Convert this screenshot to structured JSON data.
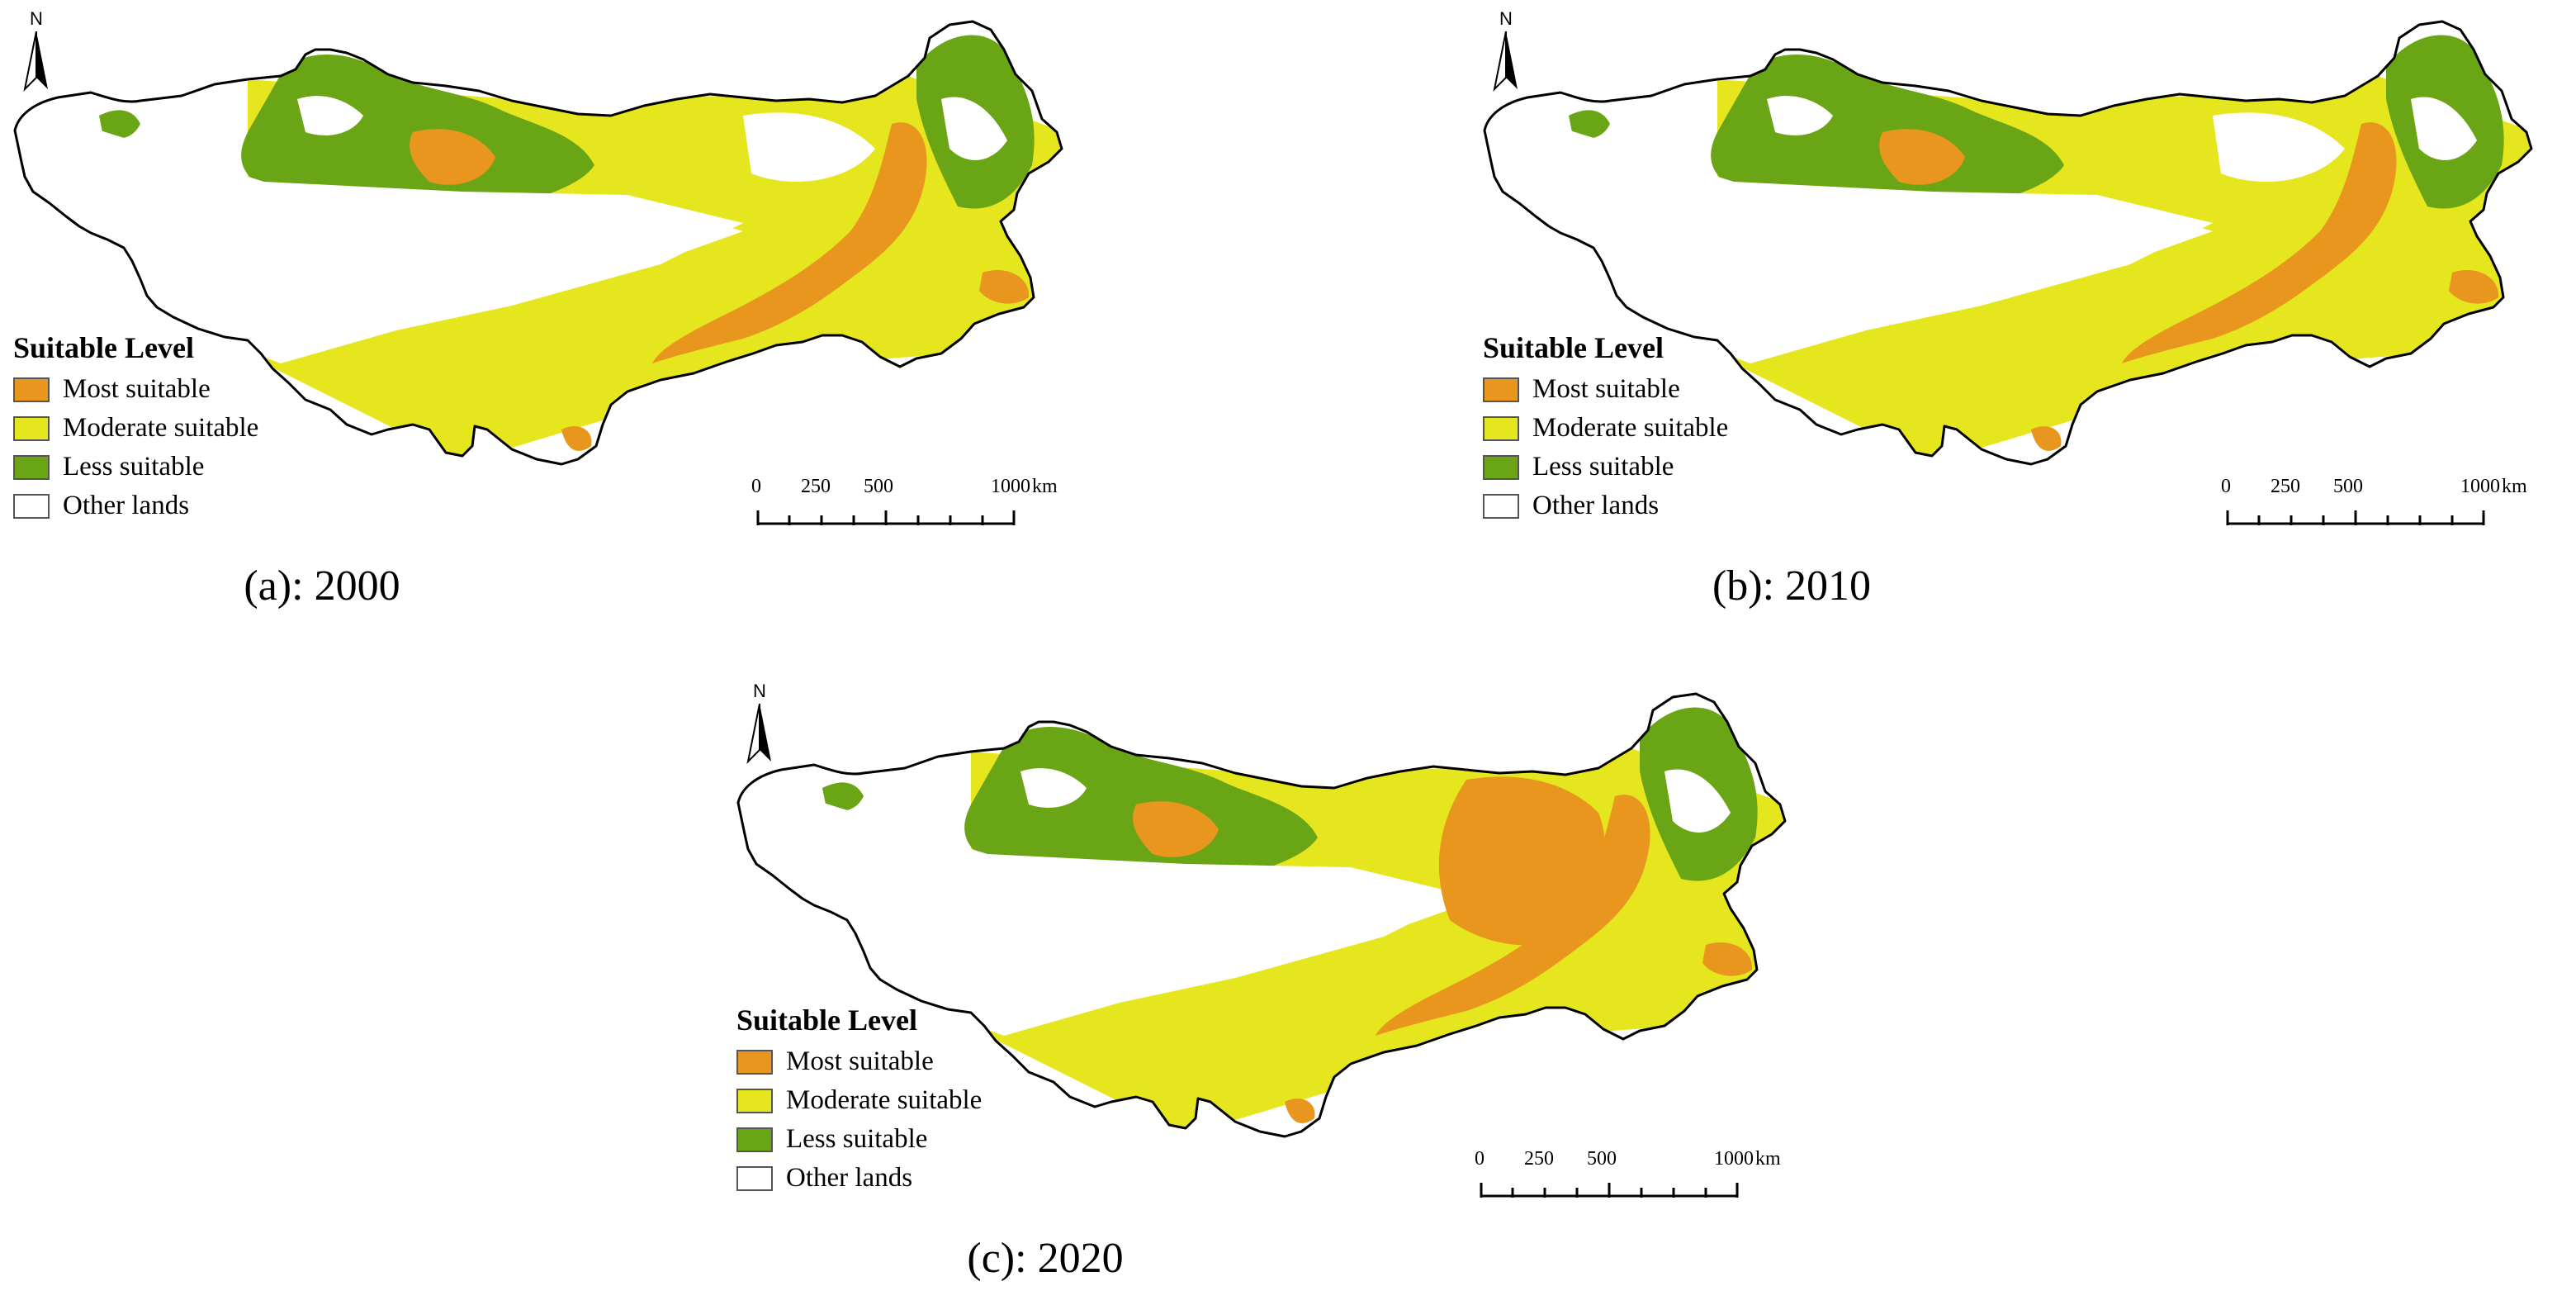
{
  "north_label": "N",
  "legend": {
    "title": "Suitable Level",
    "items": [
      {
        "label": "Most suitable",
        "color": "#E8961E"
      },
      {
        "label": "Moderate suitable",
        "color": "#E6E61E"
      },
      {
        "label": "Less suitable",
        "color": "#6AA516"
      },
      {
        "label": "Other lands",
        "color": "#FFFFFF"
      }
    ]
  },
  "scale": {
    "tick0": "0",
    "tick1": "250",
    "tick2": "500",
    "tick3": "1000",
    "unit": "km"
  },
  "panels": [
    {
      "caption": "(a): 2000"
    },
    {
      "caption": "(b): 2010"
    },
    {
      "caption": "(c): 2020"
    }
  ]
}
